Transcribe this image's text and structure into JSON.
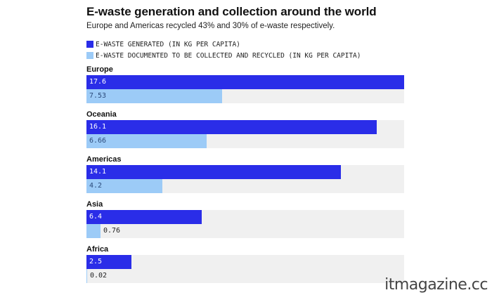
{
  "title": "E-waste generation and collection around the world",
  "subtitle": "Europe and Americas recycled 43% and 30% of e-waste respectively.",
  "legend": [
    {
      "label": "E-WASTE GENERATED (IN KG PER CAPITA)",
      "color": "#2a2de8"
    },
    {
      "label": "E-WASTE DOCUMENTED TO BE COLLECTED AND RECYCLED (IN KG PER CAPITA)",
      "color": "#9ccbf7"
    }
  ],
  "watermark": "itmagazine.cc",
  "colors": {
    "generated": "#2a2de8",
    "recycled": "#9ccbf7",
    "track": "#f0f0f0"
  },
  "chart_data": {
    "type": "bar",
    "orientation": "horizontal",
    "title": "E-waste generation and collection around the world",
    "subtitle": "Europe and Americas recycled 43% and 30% of e-waste respectively.",
    "categories": [
      "Europe",
      "Oceania",
      "Americas",
      "Asia",
      "Africa"
    ],
    "series": [
      {
        "name": "E-WASTE GENERATED (IN KG PER CAPITA)",
        "values": [
          17.6,
          16.1,
          14.1,
          6.4,
          2.5
        ]
      },
      {
        "name": "E-WASTE DOCUMENTED TO BE COLLECTED AND RECYCLED (IN KG PER CAPITA)",
        "values": [
          7.53,
          6.66,
          4.2,
          0.76,
          0.02
        ]
      }
    ],
    "value_labels": [
      [
        "17.6",
        "16.1",
        "14.1",
        "6.4",
        "2.5"
      ],
      [
        "7.53",
        "6.66",
        "4.2",
        "0.76",
        "0.02"
      ]
    ],
    "xlim": [
      0,
      17.6
    ],
    "grid": false,
    "legend_position": "top-left",
    "xlabel": "",
    "ylabel": ""
  }
}
